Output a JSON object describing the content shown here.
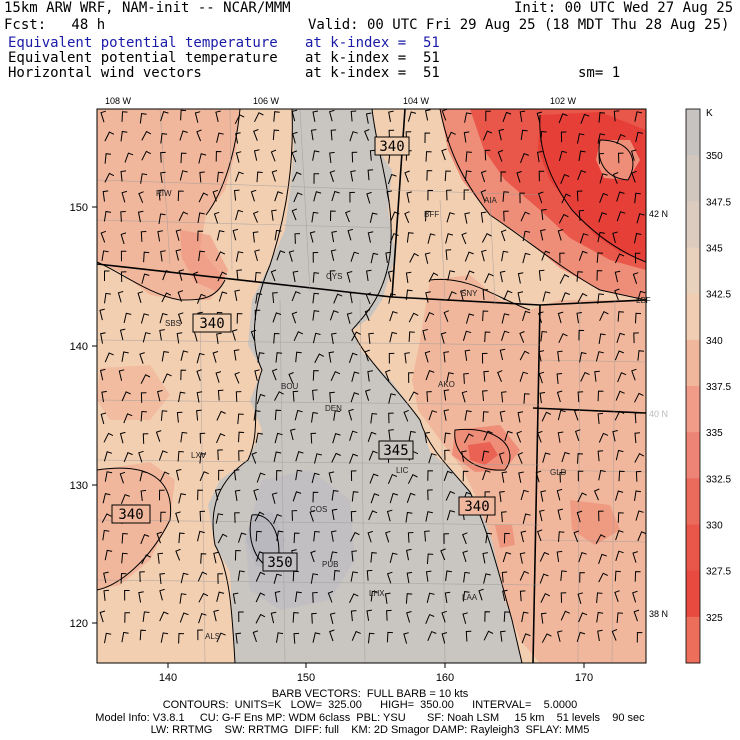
{
  "header": {
    "model_line": "15km ARW WRF, NAM-init -- NCAR/MMM",
    "init_line": "Init: 00 UTC Wed 27 Aug 25",
    "fcst_line": "Fcst:   48 h",
    "valid_line": "Valid: 00 UTC Fri 29 Aug 25 (18 MDT Thu 28 Aug 25)",
    "fields": [
      {
        "name": "Equivalent potential temperature",
        "level": "at k-index =  51"
      },
      {
        "name": "Equivalent potential temperature",
        "level": "at k-index =  51"
      },
      {
        "name": "Horizontal wind vectors",
        "level": "at k-index =  51"
      }
    ],
    "smoothing": "sm= 1"
  },
  "map": {
    "lon_labels": [
      "108 W",
      "106 W",
      "104 W",
      "102 W"
    ],
    "lat_labels": [
      "42 N",
      "40 N",
      "38 N"
    ],
    "x_ticks": [
      "140",
      "150",
      "160",
      "170"
    ],
    "y_ticks": [
      "150",
      "140",
      "130",
      "120"
    ],
    "stations": [
      "RIW",
      "AIA",
      "BFF",
      "CYS",
      "SNY",
      "SBS",
      "BOU",
      "DEN",
      "AKO",
      "LXV",
      "LIC",
      "GLD",
      "COS",
      "PUB",
      "LHX",
      "LAA",
      "ALS",
      "LBF"
    ],
    "contour_labels": [
      "340",
      "340",
      "345",
      "340",
      "340",
      "350"
    ],
    "colors": {
      "background_gray": "#c9c5c1",
      "peach_light": "#f3cfb2",
      "peach": "#f1b79c",
      "salmon": "#ee8e78",
      "red": "#e9574a",
      "deep_red": "#e53f38"
    }
  },
  "colorbar": {
    "unit": "K",
    "labels": [
      "350",
      "347.5",
      "345",
      "342.5",
      "340",
      "337.5",
      "335",
      "332.5",
      "330",
      "327.5",
      "325"
    ],
    "colors": [
      "#c7c3c1",
      "#d2c7be",
      "#dccbbf",
      "#e8d1bd",
      "#f1cdb3",
      "#f1b79c",
      "#f09c88",
      "#ee8475",
      "#ea6a5b",
      "#e9574a",
      "#e84a40",
      "#ee6e5c"
    ]
  },
  "footer": {
    "barb_line": "BARB VECTORS:  FULL BARB = 10 kts",
    "contours_line": "CONTOURS:  UNITS=K   LOW=  325.00      HIGH=  350.00      INTERVAL=    5.0000",
    "model_info_1": "Model Info: V3.8.1     CU: G-F Ens MP: WDM 6class  PBL: YSU       SF: Noah LSM     15 km    51 levels    90 sec",
    "model_info_2": "LW: RRTMG    SW: RRTMG  DIFF: full    KM: 2D Smagor DAMP: Rayleigh3  SFLAY: MM5"
  }
}
